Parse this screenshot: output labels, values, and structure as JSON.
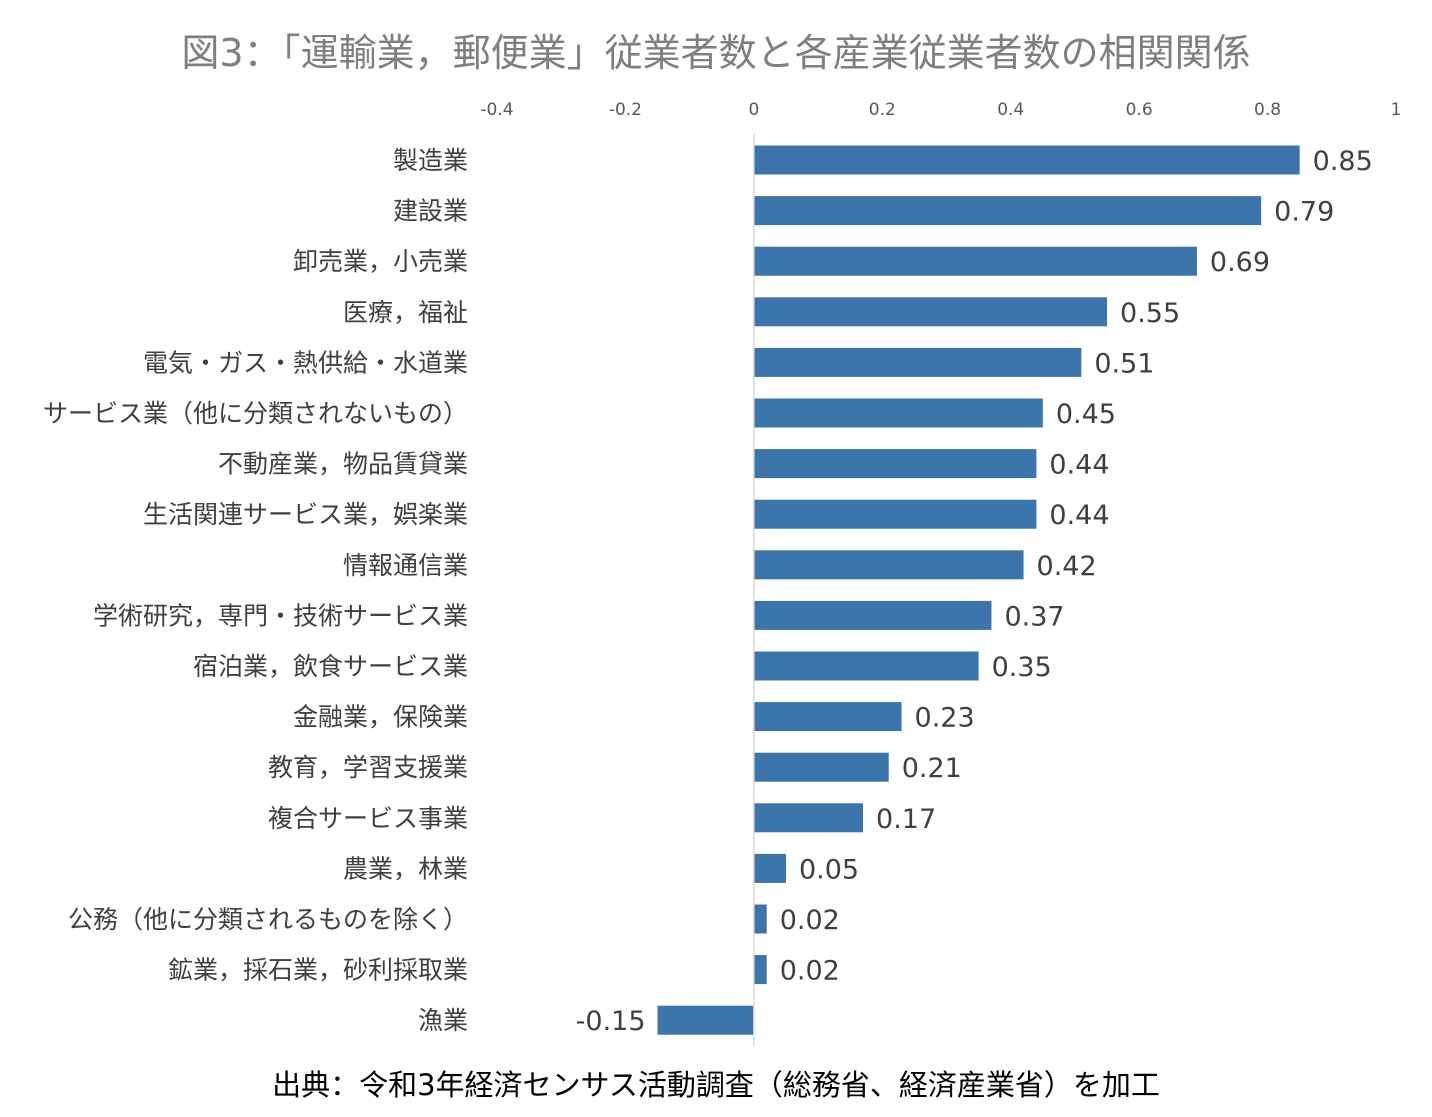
{
  "chart_data": {
    "type": "bar",
    "orientation": "horizontal",
    "title": "図3：「運輸業，郵便業」従業者数と各産業従業者数の相関関係",
    "xlabel": "",
    "ylabel": "",
    "xlim": [
      -0.4,
      1
    ],
    "x_ticks": [
      "-0.4",
      "-0.2",
      "0",
      "0.2",
      "0.4",
      "0.6",
      "0.8",
      "1"
    ],
    "x_tick_values": [
      -0.4,
      -0.2,
      0,
      0.2,
      0.4,
      0.6,
      0.8,
      1
    ],
    "grid": false,
    "legend": "none",
    "bar_color": "#3b75ab",
    "categories": [
      "製造業",
      "建設業",
      "卸売業，小売業",
      "医療，福祉",
      "電気・ガス・熱供給・水道業",
      "サービス業（他に分類されないもの）",
      "不動産業，物品賃貸業",
      "生活関連サービス業，娯楽業",
      "情報通信業",
      "学術研究，専門・技術サービス業",
      "宿泊業，飲食サービス業",
      "金融業，保険業",
      "教育，学習支援業",
      "複合サービス事業",
      "農業，林業",
      "公務（他に分類されるものを除く）",
      "鉱業，採石業，砂利採取業",
      "漁業"
    ],
    "values": [
      0.85,
      0.79,
      0.69,
      0.55,
      0.51,
      0.45,
      0.44,
      0.44,
      0.42,
      0.37,
      0.35,
      0.23,
      0.21,
      0.17,
      0.05,
      0.02,
      0.02,
      -0.15
    ],
    "data_labels": [
      "0.85",
      "0.79",
      "0.69",
      "0.55",
      "0.51",
      "0.45",
      "0.44",
      "0.44",
      "0.42",
      "0.37",
      "0.35",
      "0.23",
      "0.21",
      "0.17",
      "0.05",
      "0.02",
      "0.02",
      "-0.15"
    ]
  },
  "source": "出典：令和3年経済センサス活動調査（総務省、経済産業省）を加工"
}
